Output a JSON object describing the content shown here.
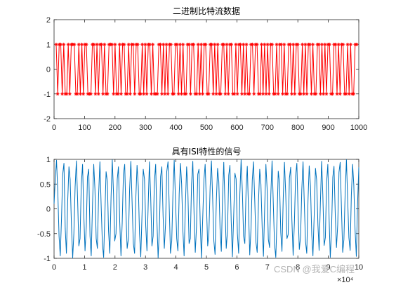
{
  "chart_data": [
    {
      "type": "line",
      "title": "二进制比特流数据",
      "xlabel": "",
      "ylabel": "",
      "xlim": [
        0,
        1000
      ],
      "ylim": [
        -2,
        2
      ],
      "xticks": [
        "0",
        "100",
        "200",
        "300",
        "400",
        "500",
        "600",
        "700",
        "800",
        "900",
        "1000"
      ],
      "yticks": [
        "2",
        "1",
        "0",
        "-1",
        "-2"
      ],
      "marker": "*",
      "color": "#ff0000",
      "series": [
        {
          "values": [
            1,
            -1,
            1,
            1,
            -1,
            1,
            -1,
            -1,
            1,
            -1,
            1,
            1,
            1,
            -1,
            -1,
            1,
            -1,
            1,
            -1,
            1,
            1,
            -1,
            -1,
            -1,
            1,
            1,
            -1,
            1,
            -1,
            1,
            1,
            -1,
            1,
            -1,
            -1,
            1,
            1,
            1,
            -1,
            1,
            -1,
            -1,
            1,
            -1,
            1,
            1,
            -1,
            -1,
            1,
            -1,
            1,
            1,
            -1,
            1,
            1,
            -1,
            -1,
            1,
            -1,
            1,
            -1,
            1,
            1,
            -1,
            1,
            -1,
            -1,
            -1,
            1,
            1,
            -1,
            1,
            -1,
            1,
            -1,
            1,
            1,
            -1,
            -1,
            1,
            1,
            -1,
            1,
            -1,
            1,
            -1,
            -1,
            1,
            1,
            -1,
            1,
            1,
            -1,
            -1,
            1,
            -1,
            1,
            -1,
            1,
            1,
            -1,
            -1,
            1,
            1,
            -1,
            1,
            -1,
            1,
            -1,
            -1,
            1,
            1,
            -1,
            1,
            -1,
            1,
            1,
            -1,
            -1,
            1,
            -1,
            1,
            1,
            -1,
            1,
            -1,
            1,
            -1,
            -1,
            1,
            1,
            -1,
            1,
            1,
            -1,
            -1,
            1,
            -1,
            1,
            -1,
            1,
            -1,
            1,
            1,
            -1,
            -1,
            1,
            -1,
            1,
            1,
            -1,
            1,
            -1,
            -1,
            1,
            1,
            -1,
            1,
            -1,
            1,
            1,
            -1,
            -1,
            1,
            -1,
            1,
            -1,
            1,
            1,
            -1,
            1,
            -1,
            -1,
            1,
            1,
            -1,
            1,
            -1,
            1,
            -1,
            1,
            1,
            -1,
            -1,
            1,
            1,
            -1,
            1,
            -1,
            1,
            1,
            -1,
            -1,
            1,
            -1,
            1,
            -1,
            -1,
            1,
            1
          ]
        }
      ]
    },
    {
      "type": "line",
      "title": "具有ISI特性的信号",
      "xlabel": "",
      "ylabel": "",
      "xlim": [
        0,
        10
      ],
      "ylim": [
        -1,
        1
      ],
      "xticks": [
        "0",
        "1",
        "2",
        "3",
        "4",
        "5",
        "6",
        "7",
        "8",
        "9",
        "10"
      ],
      "yticks": [
        "1",
        "0.5",
        "0",
        "-0.5",
        "-1"
      ],
      "x_exponent_label": "×10⁴",
      "color": "#0072bd",
      "series": [
        {
          "values": [
            0.1,
            0.62,
            0.98,
            0.35,
            -0.55,
            -0.95,
            -0.2,
            0.7,
            0.92,
            -0.4,
            -0.9,
            0.15,
            0.85,
            0.6,
            -0.3,
            -0.99,
            -0.5,
            0.45,
            0.97,
            0.2,
            -0.75,
            -0.6,
            0.5,
            0.9,
            -0.1,
            -0.85,
            -0.35,
            0.65,
            0.8,
            -0.55,
            -0.95,
            0.05,
            0.9,
            0.4,
            -0.6,
            -0.8,
            0.3,
            0.95,
            0.1,
            -0.7,
            -0.98,
            -0.15,
            0.75,
            0.55,
            -0.45,
            -0.9,
            0.25,
            0.99,
            0.3,
            -0.65,
            -0.5,
            0.6,
            0.85,
            -0.25,
            -0.95,
            -0.3,
            0.7,
            0.9,
            -0.05,
            -0.8,
            -0.6,
            0.4,
            0.96,
            0.15,
            -0.7,
            -0.9,
            0.2,
            0.88,
            0.45,
            -0.5,
            -0.97,
            -0.1,
            0.8,
            0.6,
            -0.35,
            -0.85,
            0.1,
            0.95,
            0.25,
            -0.75,
            -0.55,
            0.55,
            0.9,
            -0.2,
            -0.99,
            -0.4,
            0.65,
            0.85,
            -0.15,
            -0.8,
            -0.3,
            0.75,
            0.95,
            0.0,
            -0.9,
            -0.65,
            0.35,
            0.98,
            0.2,
            -0.6,
            -0.85,
            0.3,
            0.92,
            0.5,
            -0.45,
            -0.95,
            0.05,
            0.85,
            0.4,
            -0.7,
            -0.6,
            0.5,
            0.96,
            -0.1,
            -0.88,
            -0.35,
            0.7,
            0.8,
            -0.3,
            -0.99,
            -0.2,
            0.6,
            0.9,
            0.1,
            -0.75,
            -0.5,
            0.45,
            0.97,
            0.25,
            -0.65,
            -0.92,
            0.15,
            0.82,
            0.55,
            -0.4,
            -0.86,
            0.2,
            0.94,
            0.05,
            -0.8,
            -0.45,
            0.68,
            0.88,
            -0.25,
            -0.97,
            -0.15,
            0.72,
            0.6,
            -0.5,
            -0.9,
            0.3,
            0.99,
            0.35,
            -0.55,
            -0.7,
            0.4,
            0.86,
            -0.05,
            -0.93,
            -0.4,
            0.58,
            0.95,
            0.18,
            -0.68,
            -0.88,
            0.12,
            0.8,
            0.5,
            -0.38,
            -0.96,
            -0.02,
            0.9,
            0.42,
            -0.62,
            -0.78,
            0.28,
            0.97,
            0.08,
            -0.72,
            -0.98,
            -0.18,
            0.76,
            0.52,
            -0.48,
            -0.86,
            0.22,
            0.94,
            0.32,
            -0.6,
            -0.52,
            0.62,
            0.84,
            -0.22,
            -0.94,
            -0.28,
            0.66,
            0.92,
            -0.08,
            -0.82,
            -0.56,
            0.38,
            0.95,
            0.12,
            -0.66,
            -0.9,
            0.18,
            0.87,
            0.46,
            -0.52,
            -0.95,
            -0.12,
            0.82,
            0.58,
            -0.32,
            -0.84,
            0.12,
            0.96,
            0.28,
            -0.74,
            -0.58,
            0.52,
            0.9,
            -0.18,
            -0.98,
            -0.42,
            0.64,
            0.86,
            -0.12,
            -0.78,
            -0.32,
            0.74,
            0.94,
            0.02,
            -0.88,
            -0.62,
            0.32,
            0.99,
            0.22,
            -0.58,
            -0.84,
            0.28,
            0.9,
            0.48,
            -0.42,
            -0.96,
            0.08,
            0.84
          ]
        }
      ]
    }
  ],
  "watermark": "CSDN @我爱C编程",
  "colors": {
    "axes": "#262626",
    "bits": "#ff0000",
    "signal": "#0072bd"
  }
}
